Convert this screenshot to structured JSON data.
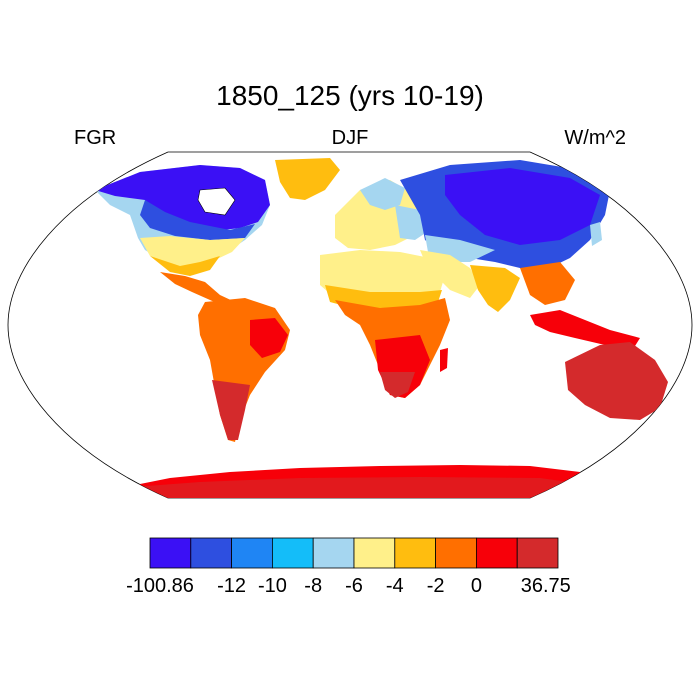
{
  "header": {
    "title": "1850_125 (yrs 10-19)",
    "left_label": "FGR",
    "center_label": "DJF",
    "right_label": "W/m^2"
  },
  "colorbar": {
    "colors": [
      "#3b10f5",
      "#2e4fe0",
      "#1f85f4",
      "#14bdf9",
      "#a5d6f0",
      "#fff08a",
      "#ffbd0f",
      "#ff6f00",
      "#f70009",
      "#d42a2c"
    ],
    "labels": [
      "-100.86",
      "-12",
      "-10",
      "-8",
      "-6",
      "-4",
      "-2",
      "0",
      "36.75"
    ]
  },
  "map": {
    "projection": "Robinson",
    "background": "#ffffff",
    "land_colors": {
      "canada_arctic": "#3b10f5",
      "siberia": "#2e4fe0",
      "europe": "#a5d6f0",
      "sahara": "#fff08a",
      "greenland": "#ffbd0f",
      "tropics": "#ff6f00",
      "southern_africa": "#f70009",
      "australia": "#d42a2c",
      "antarctica": "#f70009"
    }
  }
}
